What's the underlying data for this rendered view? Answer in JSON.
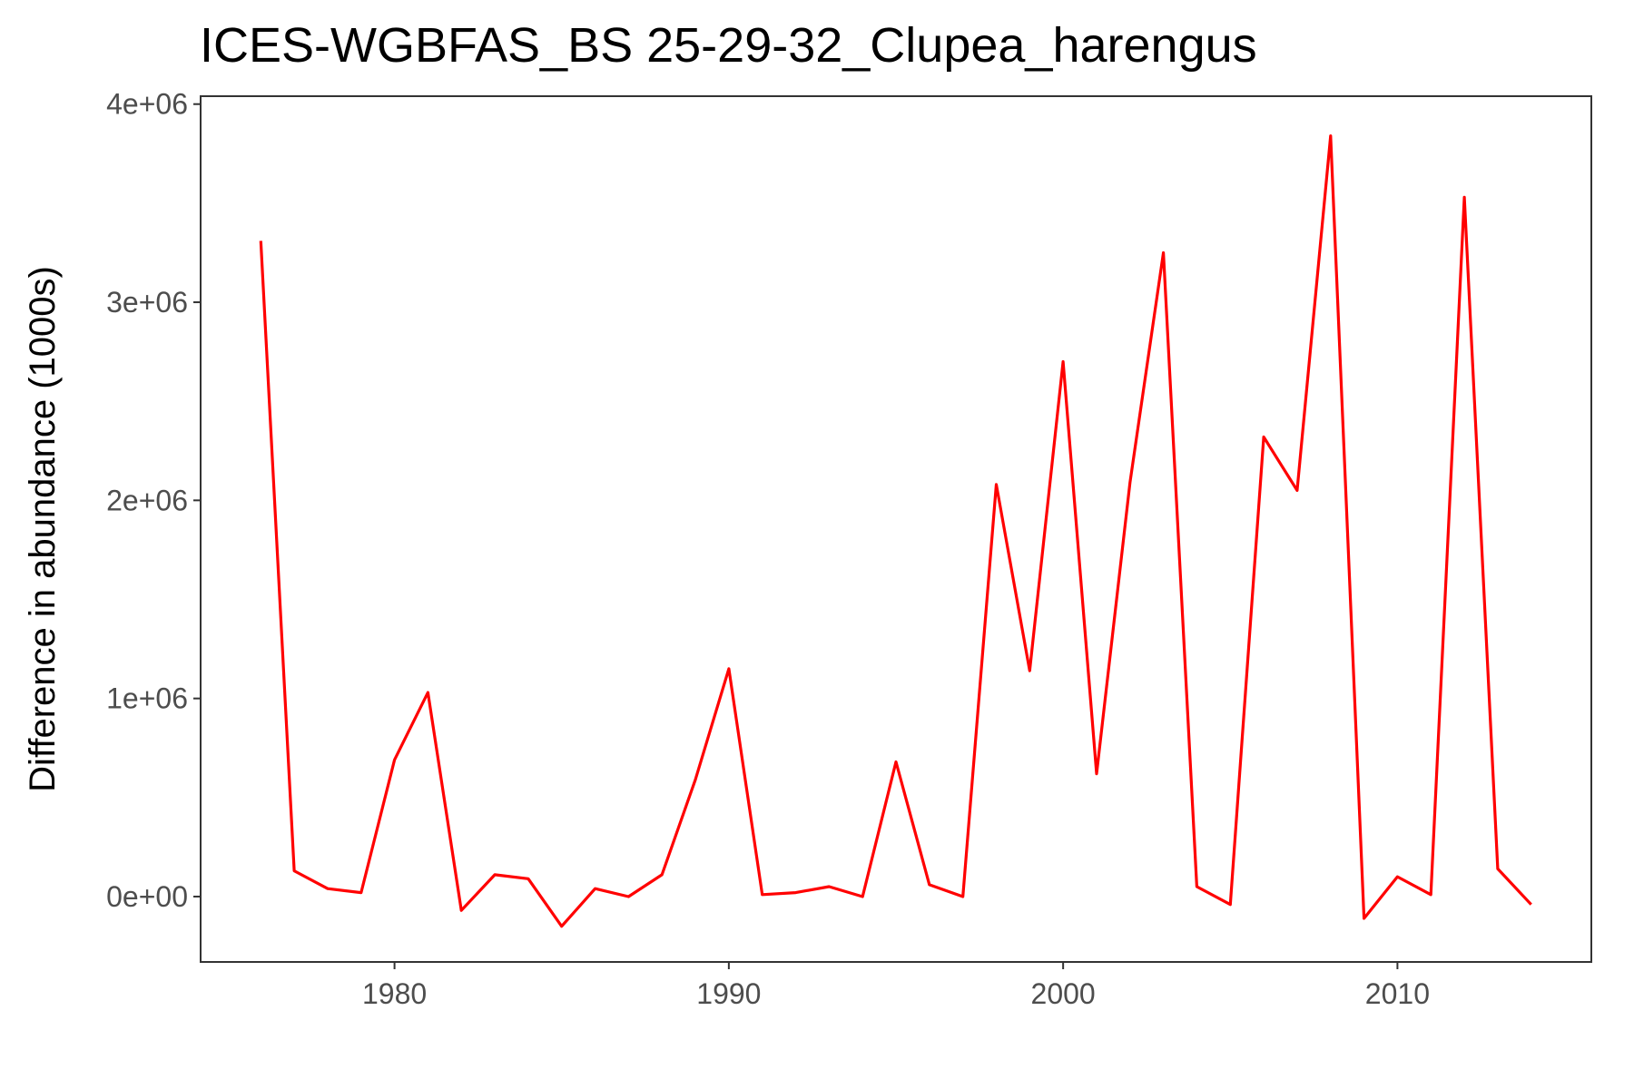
{
  "chart_data": {
    "type": "line",
    "title": "ICES-WGBFAS_BS 25-29-32_Clupea_harengus",
    "xlabel": "",
    "ylabel": "Difference in abundance (1000s)",
    "xlim": [
      1974.2,
      2015.8
    ],
    "ylim": [
      -330000,
      4040000
    ],
    "x_ticks": [
      1980,
      1990,
      2000,
      2010
    ],
    "x_tick_labels": [
      "1980",
      "1990",
      "2000",
      "2010"
    ],
    "y_ticks": [
      0,
      1000000,
      2000000,
      3000000,
      4000000
    ],
    "y_tick_labels": [
      "0e+00",
      "1e+06",
      "2e+06",
      "3e+06",
      "4e+06"
    ],
    "grid": false,
    "line_color": "#ff0000",
    "series": [
      {
        "x": [
          1976,
          1977,
          1978,
          1979,
          1980,
          1981,
          1982,
          1983,
          1984,
          1985,
          1986,
          1987,
          1988,
          1989,
          1990,
          1991,
          1992,
          1993,
          1994,
          1995,
          1996,
          1997,
          1998,
          1999,
          2000,
          2001,
          2002,
          2003,
          2004,
          2005,
          2006,
          2007,
          2008,
          2009,
          2010,
          2011,
          2012,
          2013,
          2014
        ],
        "y": [
          3310000,
          130000,
          40000,
          20000,
          690000,
          1030000,
          -70000,
          110000,
          90000,
          -150000,
          40000,
          0,
          110000,
          590000,
          1150000,
          10000,
          20000,
          50000,
          0,
          680000,
          60000,
          0,
          2080000,
          1140000,
          2700000,
          620000,
          2090000,
          3250000,
          50000,
          -40000,
          2320000,
          2050000,
          3840000,
          -110000,
          100000,
          10000,
          3530000,
          140000,
          -40000
        ]
      }
    ]
  }
}
